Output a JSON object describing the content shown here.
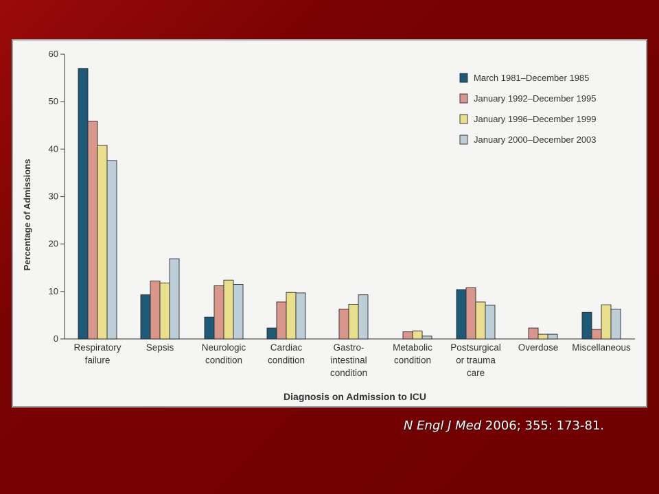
{
  "chart_data": {
    "type": "bar",
    "xlabel": "Diagnosis on Admission to ICU",
    "ylabel": "Percentage of Admissions",
    "ylim": [
      0,
      60
    ],
    "yticks": [
      0,
      10,
      20,
      30,
      40,
      50,
      60
    ],
    "grid": false,
    "legend_position": "top-right",
    "categories": [
      [
        "Respiratory",
        "failure"
      ],
      [
        "Sepsis"
      ],
      [
        "Neurologic",
        "condition"
      ],
      [
        "Cardiac",
        "condition"
      ],
      [
        "Gastro-",
        "intestinal",
        "condition"
      ],
      [
        "Metabolic",
        "condition"
      ],
      [
        "Postsurgical",
        "or trauma",
        "care"
      ],
      [
        "Overdose"
      ],
      [
        "Miscellaneous"
      ]
    ],
    "series": [
      {
        "name": "March 1981–December 1985",
        "color": "#1d5a78",
        "values": [
          57.0,
          9.3,
          4.6,
          2.3,
          0.0,
          0.0,
          10.4,
          0.0,
          5.6
        ]
      },
      {
        "name": "January 1992–December 1995",
        "color": "#d9968a",
        "values": [
          45.9,
          12.2,
          11.2,
          7.8,
          6.3,
          1.5,
          10.8,
          2.3,
          2.0
        ]
      },
      {
        "name": "January 1996–December 1999",
        "color": "#e9df8c",
        "values": [
          40.8,
          11.8,
          12.4,
          9.8,
          7.3,
          1.7,
          7.8,
          1.0,
          7.2
        ]
      },
      {
        "name": "January 2000–December 2003",
        "color": "#bccfd8",
        "values": [
          37.6,
          16.9,
          11.5,
          9.7,
          9.3,
          0.6,
          7.1,
          1.0,
          6.3
        ]
      }
    ]
  },
  "citation": {
    "journal": "N Engl J Med",
    "details": " 2006; 355: 173-81."
  }
}
